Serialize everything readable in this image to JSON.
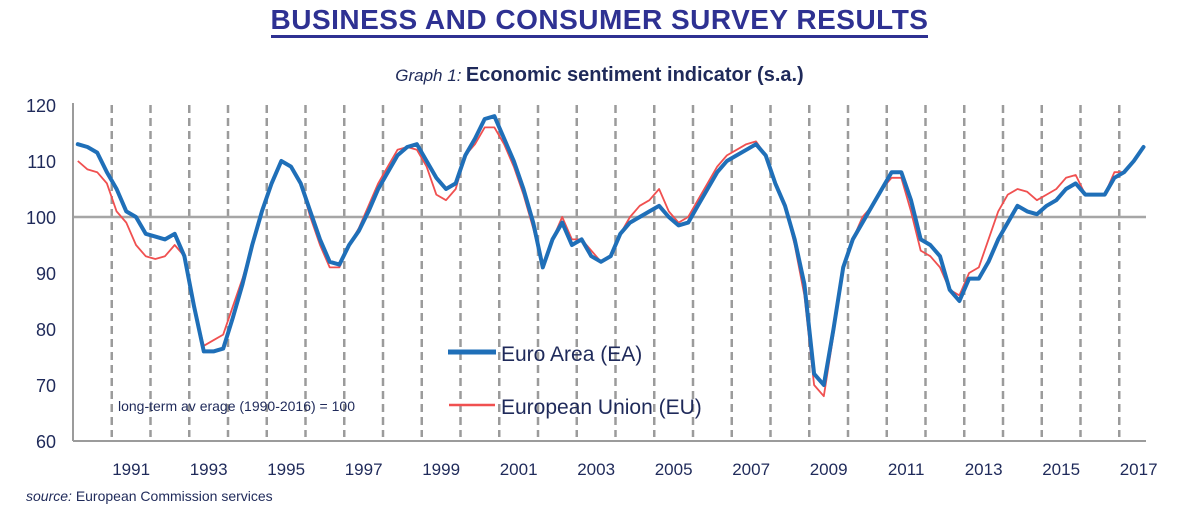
{
  "page": {
    "title": "BUSINESS AND CONSUMER SURVEY RESULTS",
    "source_label": "source:",
    "source_text": "European Commission services"
  },
  "chart_data": {
    "type": "line",
    "graph_number": "Graph 1:",
    "title": "Economic sentiment indicator (s.a.)",
    "xlabel": "",
    "ylabel": "",
    "ylim": [
      60,
      120
    ],
    "xlim": [
      1990.0,
      2017.75
    ],
    "y_ticks": [
      60,
      70,
      80,
      90,
      100,
      110,
      120
    ],
    "x_tick_labels": [
      "1991",
      "1993",
      "1995",
      "1997",
      "1999",
      "2001",
      "2003",
      "2005",
      "2007",
      "2009",
      "2011",
      "2013",
      "2015",
      "2017"
    ],
    "reference_line": 100,
    "annotation": "long-term av erage (1990-2016) = 100",
    "legend_position": "center-bottom",
    "colors": {
      "ea": "#1f6fb8",
      "eu": "#f05050",
      "axis": "#9b9b9b",
      "text": "#1f2a5a"
    },
    "x_frequency": "quarterly, starting 1990 Q1",
    "series": [
      {
        "name": "Euro Area (EA)",
        "key": "ea",
        "values": [
          113,
          112.5,
          111.5,
          108,
          105,
          101,
          100,
          97,
          96.5,
          96,
          97,
          93,
          84,
          76,
          76,
          76.5,
          82,
          88,
          95,
          101,
          106,
          110,
          109,
          106,
          101,
          96,
          92,
          91.5,
          95,
          97.5,
          101,
          105,
          108,
          111,
          112.5,
          113,
          110,
          107,
          105,
          106,
          111,
          114,
          117.5,
          118,
          114,
          110,
          105,
          99,
          91,
          96,
          99,
          95,
          96,
          93,
          92,
          93,
          97,
          99,
          100,
          101,
          102,
          100,
          98.5,
          99,
          102,
          105,
          108,
          110,
          111,
          112,
          113,
          111,
          106,
          102,
          96,
          88,
          72,
          70,
          80,
          91,
          96,
          99,
          102,
          105,
          108,
          108,
          103,
          96,
          95,
          93,
          87,
          85,
          89,
          89,
          92,
          96,
          99,
          102,
          101,
          100.5,
          102,
          103,
          105,
          106,
          104,
          104,
          104,
          107,
          108,
          110,
          112.5
        ]
      },
      {
        "name": "European Union (EU)",
        "key": "eu",
        "values": [
          110,
          108.5,
          108,
          106,
          101,
          99,
          95,
          93,
          92.5,
          93,
          95,
          93,
          84,
          77,
          78,
          79,
          84,
          89,
          95,
          101,
          106,
          110,
          109,
          106,
          100,
          95,
          91,
          91,
          95,
          98,
          102,
          106,
          109,
          112,
          112.5,
          112,
          109,
          104,
          103,
          105,
          111,
          113,
          116,
          116,
          113,
          109,
          104,
          98,
          91,
          96,
          100,
          96,
          96,
          94,
          92,
          93,
          97,
          100,
          102,
          103,
          105,
          101,
          99,
          100,
          103,
          106,
          109,
          111,
          112,
          113,
          113.5,
          111,
          106,
          102,
          95,
          86,
          70,
          68,
          79,
          91,
          96,
          100,
          102,
          105,
          107,
          107,
          101,
          94,
          93,
          91,
          87,
          86,
          90,
          91,
          96,
          101,
          104,
          105,
          104.5,
          103,
          104,
          105,
          107,
          107.5,
          104,
          104,
          104,
          108,
          108,
          110,
          112.5
        ]
      }
    ]
  }
}
